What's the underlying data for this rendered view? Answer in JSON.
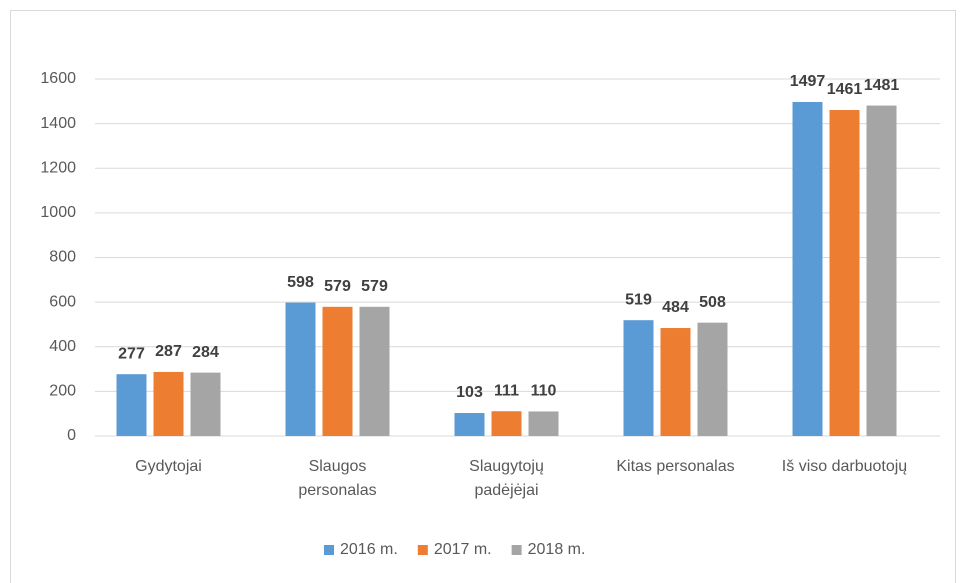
{
  "chart_data": {
    "type": "bar",
    "categories": [
      "Gydytojai",
      "Slaugos personalas",
      "Slaugytojų padėjėjai",
      "Kitas personalas",
      "Iš viso darbuotojų"
    ],
    "series": [
      {
        "name": "2016 m.",
        "color": "#5b9bd5",
        "values": [
          277,
          598,
          103,
          519,
          1497
        ]
      },
      {
        "name": "2017 m.",
        "color": "#ed7d31",
        "values": [
          287,
          579,
          111,
          484,
          1461
        ]
      },
      {
        "name": "2018 m.",
        "color": "#a5a5a5",
        "values": [
          284,
          579,
          110,
          508,
          1481
        ]
      }
    ],
    "ylim": [
      0,
      1600
    ],
    "yticks": [
      0,
      200,
      400,
      600,
      800,
      1000,
      1200,
      1400,
      1600
    ],
    "grid": true,
    "legend": "bottom"
  }
}
